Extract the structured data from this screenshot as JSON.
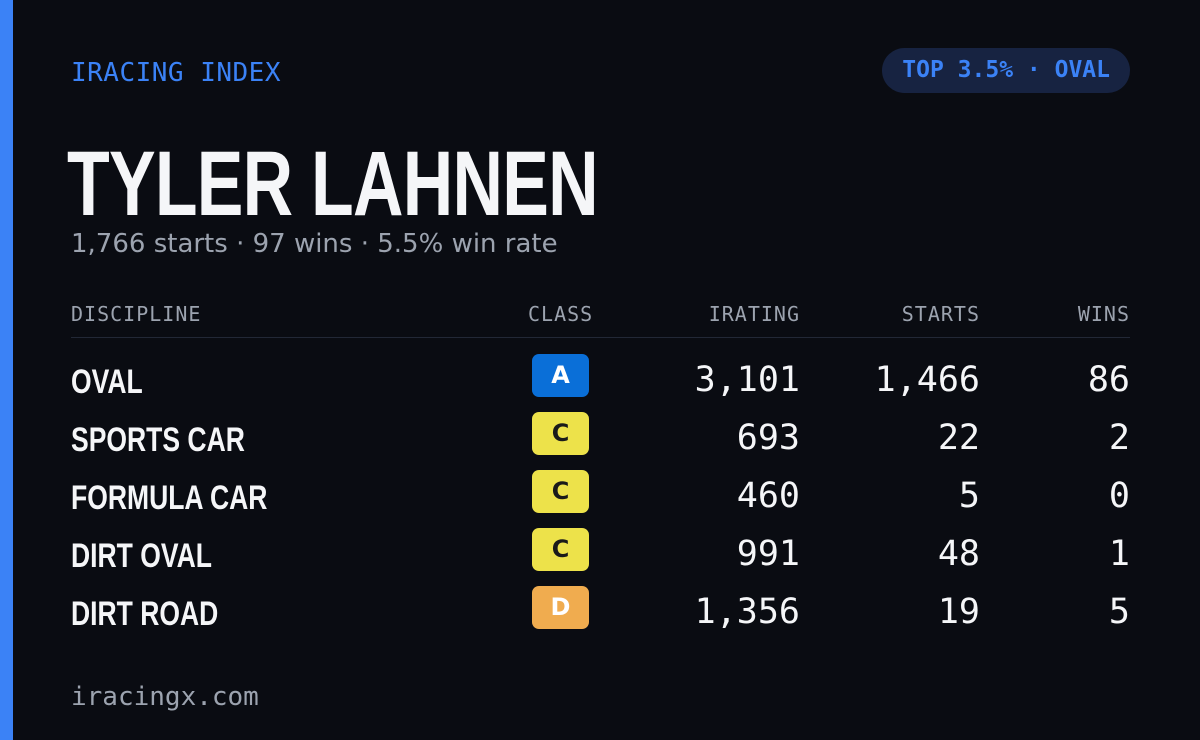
{
  "header": {
    "brand": "IRACING INDEX",
    "rank_badge": "TOP 3.5% · OVAL"
  },
  "driver": {
    "name": "TYLER LAHNEN",
    "summary": "1,766 starts · 97 wins · 5.5% win rate"
  },
  "table": {
    "columns": {
      "discipline": "DISCIPLINE",
      "class": "CLASS",
      "irating": "IRATING",
      "starts": "STARTS",
      "wins": "WINS"
    },
    "rows": [
      {
        "discipline": "OVAL",
        "class": "A",
        "class_bg": "#0a6fd8",
        "class_fg": "#ffffff",
        "irating": "3,101",
        "starts": "1,466",
        "wins": "86"
      },
      {
        "discipline": "SPORTS CAR",
        "class": "C",
        "class_bg": "#ede24a",
        "class_fg": "#1a1a1a",
        "irating": "693",
        "starts": "22",
        "wins": "2"
      },
      {
        "discipline": "FORMULA CAR",
        "class": "C",
        "class_bg": "#ede24a",
        "class_fg": "#1a1a1a",
        "irating": "460",
        "starts": "5",
        "wins": "0"
      },
      {
        "discipline": "DIRT OVAL",
        "class": "C",
        "class_bg": "#ede24a",
        "class_fg": "#1a1a1a",
        "irating": "991",
        "starts": "48",
        "wins": "1"
      },
      {
        "discipline": "DIRT ROAD",
        "class": "D",
        "class_bg": "#f0ac4f",
        "class_fg": "#ffffff",
        "irating": "1,356",
        "starts": "19",
        "wins": "5"
      }
    ]
  },
  "footer": {
    "site": "iracingx.com"
  },
  "colors": {
    "accent": "#3b82f6",
    "background": "#0a0c12"
  }
}
